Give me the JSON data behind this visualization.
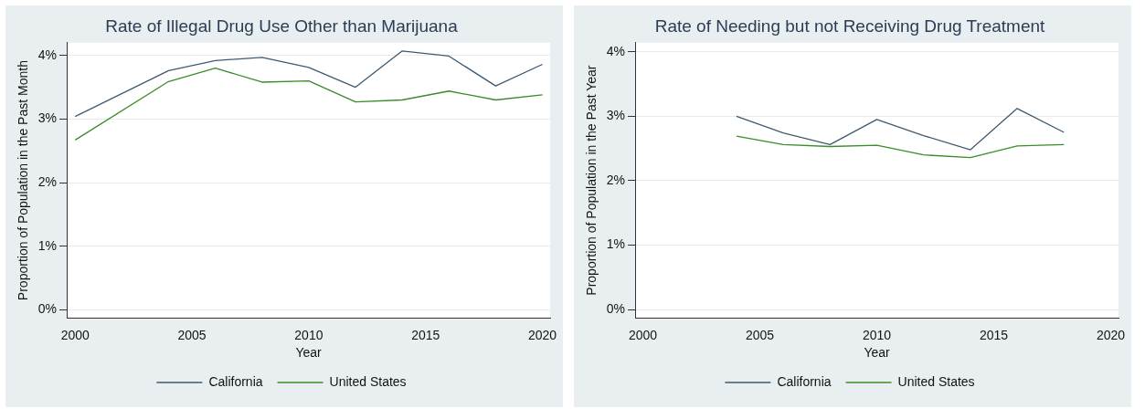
{
  "chart_data": [
    {
      "type": "line",
      "title": "Rate of Illegal Drug Use Other than Marijuana",
      "xlabel": "Year",
      "ylabel": "Proportion of Population in the Past Month",
      "x": [
        2000,
        2004,
        2006,
        2008,
        2010,
        2012,
        2014,
        2016,
        2018,
        2020
      ],
      "series": [
        {
          "name": "California",
          "color": "#3e5a70",
          "values": [
            3.04,
            3.76,
            3.92,
            3.97,
            3.81,
            3.5,
            4.07,
            3.99,
            3.52,
            3.86
          ]
        },
        {
          "name": "United States",
          "color": "#3a8c2a",
          "values": [
            2.67,
            3.59,
            3.8,
            3.58,
            3.6,
            3.27,
            3.3,
            3.44,
            3.3,
            3.38
          ]
        }
      ],
      "xlim": [
        1999.64,
        2020.33
      ],
      "xticks": [
        2000,
        2005,
        2010,
        2015,
        2020
      ],
      "ylim": [
        -0.13,
        4.2
      ],
      "yticks": [
        {
          "value": 0,
          "label": "0%"
        },
        {
          "value": 1,
          "label": "1%"
        },
        {
          "value": 2,
          "label": "2%"
        },
        {
          "value": 3,
          "label": "3%"
        },
        {
          "value": 4,
          "label": "4%"
        }
      ],
      "grid": "y",
      "legend": "bottom",
      "marker": "none",
      "line_style": "solid"
    },
    {
      "type": "line",
      "title": "Rate of Needing but not Receiving Drug Treatment",
      "xlabel": "Year",
      "ylabel": "Proportion of Population in the Past Year",
      "x": [
        2004,
        2006,
        2008,
        2010,
        2012,
        2014,
        2016,
        2018
      ],
      "series": [
        {
          "name": "California",
          "color": "#3e5a70",
          "values": [
            3.0,
            2.74,
            2.56,
            2.95,
            2.7,
            2.48,
            3.12,
            2.75
          ]
        },
        {
          "name": "United States",
          "color": "#3a8c2a",
          "values": [
            2.69,
            2.56,
            2.53,
            2.55,
            2.4,
            2.36,
            2.54,
            2.56
          ]
        }
      ],
      "xlim": [
        1999.67,
        2020.33
      ],
      "xticks": [
        2000,
        2005,
        2010,
        2015,
        2020
      ],
      "ylim": [
        -0.13,
        4.14
      ],
      "yticks": [
        {
          "value": 0,
          "label": "0%"
        },
        {
          "value": 1,
          "label": "1%"
        },
        {
          "value": 2,
          "label": "2%"
        },
        {
          "value": 3,
          "label": "3%"
        },
        {
          "value": 4,
          "label": "4%"
        }
      ],
      "grid": "y",
      "legend": "bottom",
      "marker": "none",
      "line_style": "solid"
    }
  ]
}
